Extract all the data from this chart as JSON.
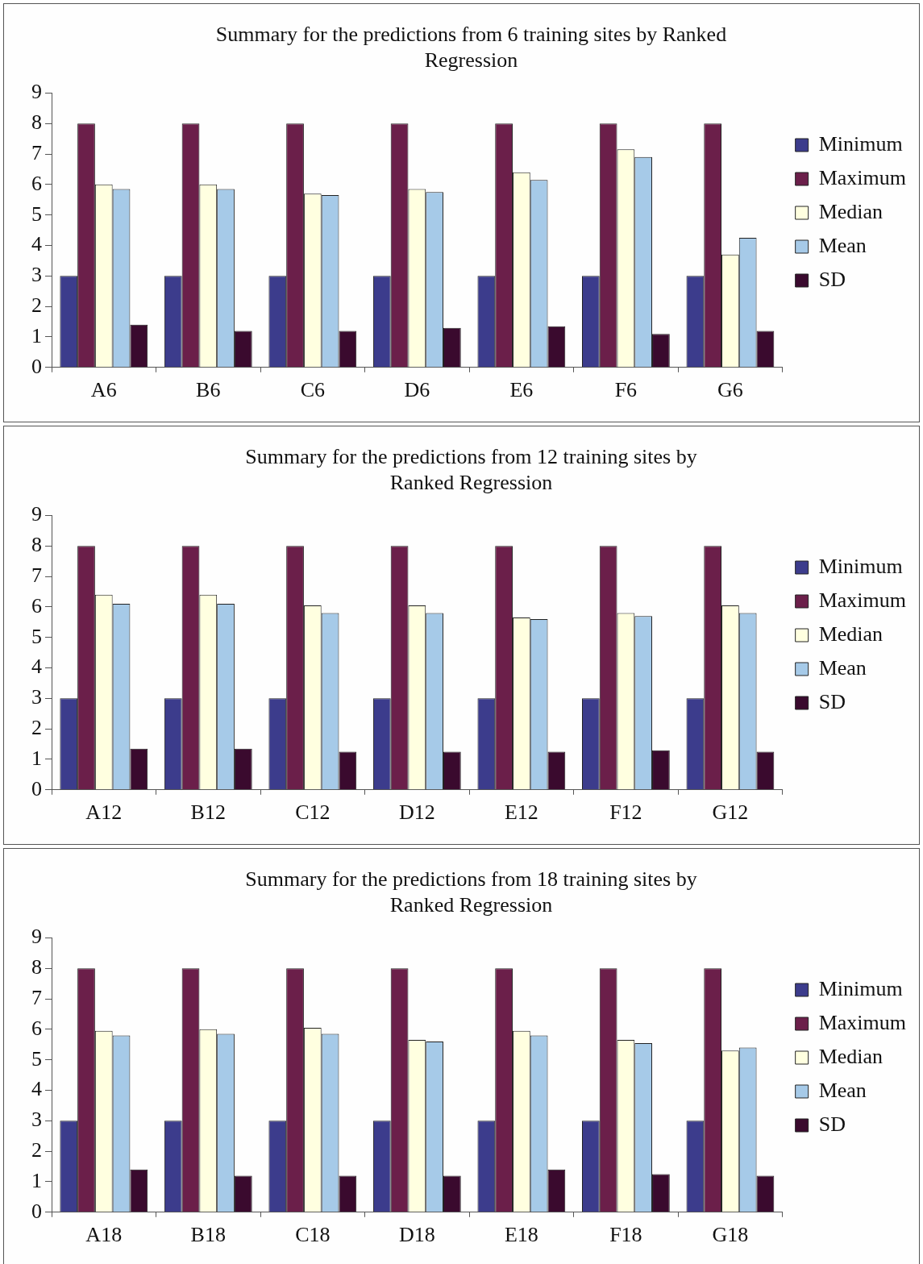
{
  "chart_data": [
    {
      "type": "bar",
      "title": "Summary for the predictions from 6 training sites by Ranked Regression",
      "categories": [
        "A6",
        "B6",
        "C6",
        "D6",
        "E6",
        "F6",
        "G6"
      ],
      "series": [
        {
          "name": "Minimum",
          "color": "#3c3c8c",
          "values": [
            3,
            3,
            3,
            3,
            3,
            3,
            3
          ]
        },
        {
          "name": "Maximum",
          "color": "#6b1f4a",
          "values": [
            8,
            8,
            8,
            8,
            8,
            8,
            8
          ]
        },
        {
          "name": "Median",
          "color": "#ffffe0",
          "values": [
            6.0,
            6.0,
            5.7,
            5.85,
            6.4,
            7.15,
            3.7
          ]
        },
        {
          "name": "Mean",
          "color": "#a6cae8",
          "values": [
            5.85,
            5.85,
            5.65,
            5.75,
            6.15,
            6.9,
            4.25
          ]
        },
        {
          "name": "SD",
          "color": "#3a0a2e",
          "values": [
            1.4,
            1.2,
            1.2,
            1.3,
            1.35,
            1.1,
            1.2
          ]
        }
      ],
      "ylim": [
        0,
        9
      ],
      "yticks": [
        0,
        1,
        2,
        3,
        4,
        5,
        6,
        7,
        8,
        9
      ],
      "grid": false,
      "legend": "right"
    },
    {
      "type": "bar",
      "title": "Summary for the predictions from 12 training sites by Ranked Regression",
      "categories": [
        "A12",
        "B12",
        "C12",
        "D12",
        "E12",
        "F12",
        "G12"
      ],
      "series": [
        {
          "name": "Minimum",
          "color": "#3c3c8c",
          "values": [
            3,
            3,
            3,
            3,
            3,
            3,
            3
          ]
        },
        {
          "name": "Maximum",
          "color": "#6b1f4a",
          "values": [
            8,
            8,
            8,
            8,
            8,
            8,
            8
          ]
        },
        {
          "name": "Median",
          "color": "#ffffe0",
          "values": [
            6.4,
            6.4,
            6.05,
            6.05,
            5.65,
            5.8,
            6.05
          ]
        },
        {
          "name": "Mean",
          "color": "#a6cae8",
          "values": [
            6.1,
            6.1,
            5.8,
            5.8,
            5.6,
            5.7,
            5.8
          ]
        },
        {
          "name": "SD",
          "color": "#3a0a2e",
          "values": [
            1.35,
            1.35,
            1.25,
            1.25,
            1.25,
            1.3,
            1.25
          ]
        }
      ],
      "ylim": [
        0,
        9
      ],
      "yticks": [
        0,
        1,
        2,
        3,
        4,
        5,
        6,
        7,
        8,
        9
      ],
      "grid": false,
      "legend": "right"
    },
    {
      "type": "bar",
      "title": "Summary for the predictions from 18 training sites by Ranked Regression",
      "categories": [
        "A18",
        "B18",
        "C18",
        "D18",
        "E18",
        "F18",
        "G18"
      ],
      "series": [
        {
          "name": "Minimum",
          "color": "#3c3c8c",
          "values": [
            3,
            3,
            3,
            3,
            3,
            3,
            3
          ]
        },
        {
          "name": "Maximum",
          "color": "#6b1f4a",
          "values": [
            8,
            8,
            8,
            8,
            8,
            8,
            8
          ]
        },
        {
          "name": "Median",
          "color": "#ffffe0",
          "values": [
            5.95,
            6.0,
            6.05,
            5.65,
            5.95,
            5.65,
            5.3
          ]
        },
        {
          "name": "Mean",
          "color": "#a6cae8",
          "values": [
            5.8,
            5.85,
            5.85,
            5.6,
            5.8,
            5.55,
            5.4
          ]
        },
        {
          "name": "SD",
          "color": "#3a0a2e",
          "values": [
            1.4,
            1.2,
            1.2,
            1.2,
            1.4,
            1.25,
            1.2
          ]
        }
      ],
      "ylim": [
        0,
        9
      ],
      "yticks": [
        0,
        1,
        2,
        3,
        4,
        5,
        6,
        7,
        8,
        9
      ],
      "grid": false,
      "legend": "right"
    }
  ]
}
